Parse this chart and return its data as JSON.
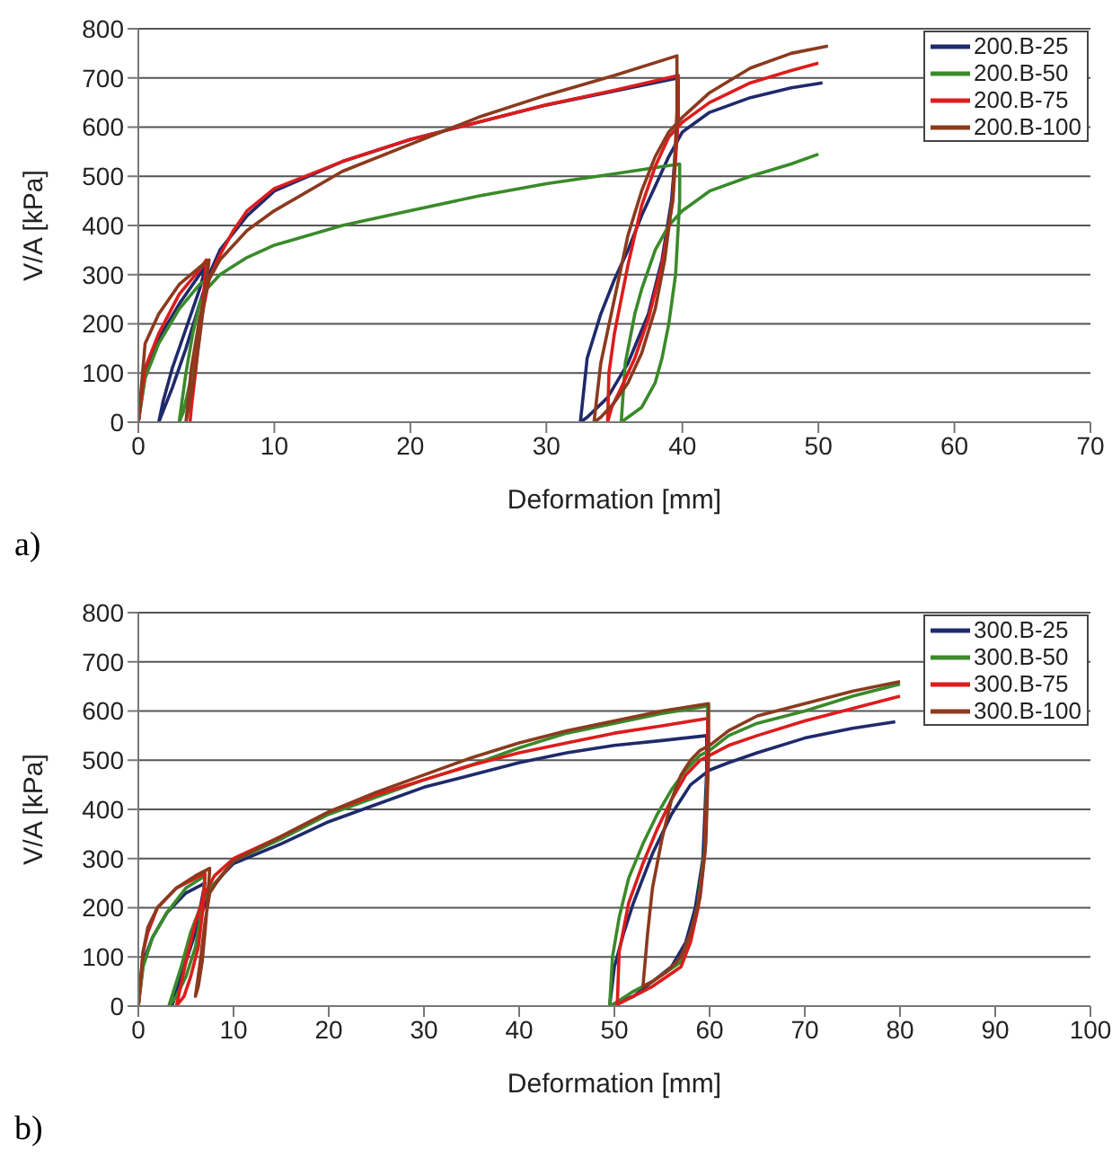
{
  "chart_data": [
    {
      "type": "line",
      "xlabel": "Deformation [mm]",
      "ylabel": "V/A [kPa]",
      "xlim": [
        0,
        70
      ],
      "xticks": [
        0,
        10,
        20,
        30,
        40,
        50,
        60,
        70
      ],
      "ylim": [
        0,
        800
      ],
      "yticks": [
        0,
        100,
        200,
        300,
        400,
        500,
        600,
        700,
        800
      ],
      "grid": "y",
      "legend": "top right",
      "annotations": [
        "a)"
      ],
      "series": [
        {
          "name": "200.B-25",
          "color": "#1f2a6b",
          "x": [
            0,
            0.5,
            1.5,
            3,
            4.5,
            5,
            4.5,
            3.5,
            2.5,
            1.8,
            1.5,
            2.5,
            3.5,
            4.5,
            5.2,
            6,
            8,
            10,
            15,
            20,
            25,
            30,
            35,
            39.7,
            39.7,
            39.2,
            38.5,
            37.5,
            36,
            34.5,
            33,
            32.5,
            33,
            34,
            35,
            36,
            37,
            38,
            39,
            40,
            42,
            45,
            48,
            50.3
          ],
          "values": [
            0,
            100,
            170,
            240,
            300,
            320,
            270,
            190,
            110,
            40,
            0,
            70,
            150,
            240,
            300,
            350,
            420,
            470,
            530,
            575,
            610,
            645,
            null,
            700,
            620,
            450,
            330,
            220,
            120,
            50,
            10,
            0,
            130,
            220,
            290,
            350,
            420,
            480,
            540,
            590,
            630,
            660,
            680,
            690
          ]
        },
        {
          "name": "200.B-50",
          "color": "#3a8a2a",
          "x": [
            0,
            0.5,
            1.5,
            3,
            4.5,
            5,
            4.7,
            4.3,
            3.8,
            3.3,
            3,
            3.5,
            4,
            4.5,
            5,
            6,
            8,
            10,
            15,
            20,
            25,
            30,
            35,
            39.8,
            39.8,
            39.5,
            39,
            38.5,
            38,
            37,
            36,
            35.5,
            35.8,
            36.5,
            37,
            38,
            39,
            40,
            42,
            45,
            48,
            50
          ],
          "values": [
            0,
            90,
            160,
            230,
            280,
            290,
            230,
            150,
            80,
            20,
            0,
            100,
            180,
            240,
            270,
            300,
            335,
            360,
            400,
            430,
            460,
            485,
            505,
            525,
            450,
            300,
            200,
            130,
            80,
            30,
            10,
            0,
            120,
            220,
            270,
            350,
            400,
            430,
            470,
            500,
            525,
            545
          ]
        },
        {
          "name": "200.B-75",
          "color": "#dd1c1c",
          "x": [
            0,
            0.5,
            1.5,
            3,
            4.5,
            5,
            4.8,
            4.5,
            4.2,
            3.9,
            3.8,
            4.2,
            4.7,
            5.2,
            6,
            7,
            8,
            10,
            15,
            20,
            25,
            30,
            35,
            39.7,
            39.7,
            39.3,
            38.5,
            37.5,
            36.5,
            35.5,
            34.8,
            34.5,
            34.6,
            35,
            36,
            37,
            38,
            39,
            40,
            42,
            45,
            48,
            50
          ],
          "values": [
            0,
            110,
            180,
            260,
            310,
            330,
            260,
            180,
            100,
            30,
            0,
            120,
            220,
            290,
            340,
            390,
            430,
            475,
            530,
            575,
            610,
            645,
            675,
            705,
            620,
            450,
            320,
            210,
            130,
            70,
            30,
            0,
            100,
            180,
            320,
            440,
            520,
            580,
            610,
            650,
            690,
            715,
            730
          ]
        },
        {
          "name": "200.B-100",
          "color": "#8b3a1e",
          "x": [
            0,
            0.5,
            1.5,
            3,
            4.5,
            5.2,
            4.9,
            4.5,
            4.1,
            3.7,
            3.5,
            3.9,
            4.5,
            5.2,
            6,
            8,
            10,
            15,
            20,
            25,
            30,
            35,
            39.6,
            39.6,
            39.3,
            38.7,
            38,
            37,
            36,
            35,
            34,
            33.5,
            34,
            35,
            36,
            37,
            38,
            39,
            40,
            42,
            45,
            48,
            50.7
          ],
          "values": [
            0,
            160,
            220,
            280,
            315,
            330,
            260,
            170,
            90,
            30,
            0,
            110,
            210,
            290,
            330,
            390,
            430,
            510,
            565,
            620,
            665,
            705,
            745,
            630,
            460,
            330,
            230,
            140,
            80,
            40,
            10,
            0,
            120,
            250,
            380,
            470,
            540,
            590,
            620,
            670,
            720,
            750,
            765
          ]
        }
      ]
    },
    {
      "type": "line",
      "xlabel": "Deformation [mm]",
      "ylabel": "V/A [kPa]",
      "xlim": [
        0,
        100
      ],
      "xticks": [
        0,
        10,
        20,
        30,
        40,
        50,
        60,
        70,
        80,
        90,
        100
      ],
      "ylim": [
        0,
        800
      ],
      "yticks": [
        0,
        100,
        200,
        300,
        400,
        500,
        600,
        700,
        800
      ],
      "grid": "y",
      "legend": "top right",
      "annotations": [
        "b)"
      ],
      "series": [
        {
          "name": "300.B-25",
          "color": "#1f2a6b",
          "x": [
            0,
            0.5,
            1.5,
            3,
            5,
            7,
            6.5,
            5.5,
            4.5,
            3.8,
            3.5,
            4.5,
            5.5,
            6.5,
            7.5,
            9,
            10,
            15,
            20,
            25,
            30,
            35,
            40,
            45,
            50,
            55,
            59.7,
            59.7,
            59.3,
            58.5,
            57.5,
            56,
            54,
            52,
            50,
            49.5,
            50,
            51,
            52,
            53,
            54,
            55,
            56,
            57,
            58,
            60,
            62,
            65,
            70,
            75,
            79.5
          ],
          "values": [
            0,
            90,
            140,
            190,
            230,
            250,
            200,
            130,
            60,
            15,
            0,
            60,
            120,
            180,
            235,
            270,
            290,
            330,
            375,
            410,
            445,
            470,
            495,
            515,
            530,
            540,
            550,
            480,
            300,
            200,
            130,
            80,
            50,
            20,
            5,
            0,
            80,
            150,
            210,
            260,
            310,
            350,
            390,
            420,
            450,
            480,
            495,
            515,
            545,
            565,
            578
          ]
        },
        {
          "name": "300.B-50",
          "color": "#3a8a2a",
          "x": [
            0,
            0.5,
            1.5,
            3,
            5,
            7,
            6.7,
            6,
            5,
            4,
            3.2,
            4.5,
            5.5,
            6.5,
            7.5,
            8.5,
            10,
            15,
            20,
            25,
            30,
            35,
            40,
            45,
            50,
            55,
            59.8,
            59.8,
            59.5,
            58.8,
            58,
            57,
            55.5,
            54,
            52,
            50,
            49.5,
            49.8,
            50.5,
            51.5,
            53,
            54.5,
            56,
            57.5,
            59,
            60,
            62,
            65,
            70,
            75,
            80
          ],
          "values": [
            0,
            80,
            140,
            190,
            240,
            265,
            200,
            120,
            60,
            20,
            0,
            80,
            150,
            200,
            240,
            260,
            295,
            340,
            390,
            425,
            460,
            490,
            525,
            555,
            575,
            595,
            610,
            500,
            320,
            210,
            140,
            90,
            70,
            50,
            30,
            5,
            0,
            100,
            180,
            260,
            330,
            390,
            440,
            480,
            510,
            520,
            550,
            575,
            600,
            630,
            655
          ]
        },
        {
          "name": "300.B-75",
          "color": "#dd1c1c",
          "x": [
            0,
            0.5,
            1,
            2,
            4,
            6,
            7,
            6.8,
            6.3,
            5.5,
            4.8,
            4.2,
            4,
            5,
            6,
            7,
            8,
            10,
            15,
            20,
            25,
            30,
            35,
            40,
            45,
            50,
            55,
            59.8,
            59.8,
            59.5,
            58.8,
            58,
            57,
            55.5,
            54,
            52,
            50.5,
            50.3,
            50.5,
            51.5,
            53,
            54.5,
            56,
            57.5,
            59,
            60,
            62,
            65,
            70,
            75,
            80
          ],
          "values": [
            0,
            110,
            150,
            200,
            240,
            260,
            270,
            200,
            120,
            60,
            20,
            5,
            0,
            90,
            170,
            230,
            265,
            300,
            345,
            395,
            430,
            460,
            490,
            515,
            535,
            555,
            570,
            585,
            490,
            310,
            200,
            130,
            80,
            60,
            40,
            20,
            5,
            0,
            110,
            210,
            290,
            360,
            420,
            470,
            500,
            510,
            530,
            550,
            580,
            605,
            630
          ]
        },
        {
          "name": "300.B-100",
          "color": "#8b3a1e",
          "x": [
            0,
            0.5,
            1,
            2,
            4,
            6,
            7.5,
            7.3,
            7,
            6.7,
            6.3,
            6,
            6.5,
            7,
            7.5,
            8.5,
            10,
            15,
            20,
            25,
            30,
            35,
            40,
            45,
            50,
            55,
            59.9,
            59.9,
            59.6,
            59,
            58,
            57,
            55.5,
            54,
            53,
            53.5,
            54,
            55,
            56,
            57,
            58,
            59,
            60,
            62,
            65,
            70,
            75,
            80
          ],
          "values": [
            0,
            110,
            160,
            200,
            240,
            265,
            280,
            220,
            150,
            90,
            40,
            20,
            90,
            170,
            230,
            260,
            295,
            345,
            395,
            435,
            470,
            505,
            535,
            560,
            580,
            600,
            615,
            510,
            330,
            220,
            150,
            100,
            70,
            50,
            40,
            150,
            240,
            340,
            420,
            470,
            500,
            520,
            530,
            560,
            590,
            615,
            640,
            660
          ]
        }
      ]
    }
  ]
}
